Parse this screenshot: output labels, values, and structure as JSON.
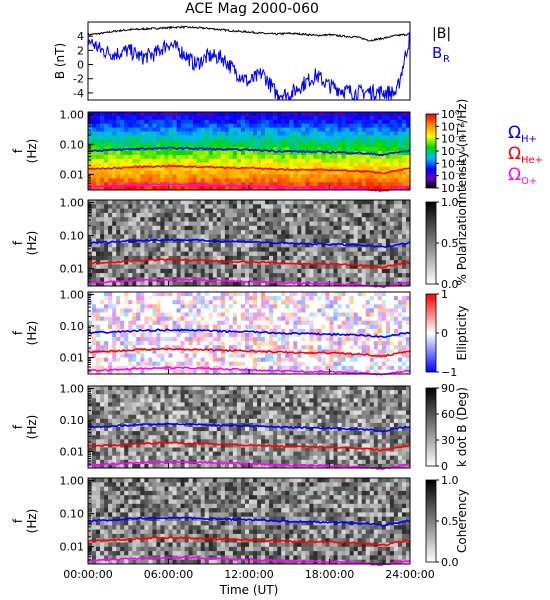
{
  "title": "ACE Mag 2000-060",
  "colors": {
    "B_mag": "#000000",
    "B_R": "#0000ff",
    "H_plus": "#0000ff",
    "He_plus": "#ff0000",
    "O_plus": "#ff00ff"
  },
  "chart_data": [
    {
      "type": "line",
      "panel": "field",
      "ylabel": "B (nT)",
      "ylim": [
        -5,
        6
      ],
      "yticks": [
        "4",
        "2",
        "0",
        "-2",
        "-4"
      ],
      "series": [
        {
          "name": "|B|",
          "x": [
            0,
            1,
            2,
            3,
            4,
            5,
            6,
            7,
            8,
            9,
            10,
            11,
            12,
            13,
            14,
            15,
            16,
            17,
            18,
            19,
            20,
            21,
            22,
            23,
            24
          ],
          "values": [
            4.2,
            4.4,
            4.7,
            4.9,
            5.0,
            5.1,
            5.2,
            5.3,
            5.2,
            5.1,
            4.9,
            4.7,
            4.6,
            4.4,
            4.3,
            4.4,
            4.3,
            4.1,
            4.2,
            4.0,
            3.9,
            3.4,
            3.7,
            4.1,
            4.3
          ]
        },
        {
          "name": "B",
          "subscript": "R",
          "x": [
            0,
            1,
            2,
            3,
            4,
            5,
            6,
            7,
            8,
            9,
            10,
            11,
            12,
            13,
            14,
            15,
            16,
            17,
            18,
            19,
            20,
            21,
            22,
            23,
            24
          ],
          "values": [
            3.5,
            2.0,
            1.5,
            2.0,
            1.0,
            1.5,
            3.0,
            1.8,
            0.0,
            1.2,
            1.0,
            -1.0,
            -2.5,
            -1.2,
            -4.0,
            -4.3,
            -2.8,
            -1.5,
            -3.0,
            -3.6,
            -4.0,
            -3.8,
            -3.9,
            -4.0,
            4.0
          ]
        }
      ]
    },
    {
      "type": "heatmap",
      "panel": "spectra",
      "ylabel": "f (Hz)",
      "yticks": [
        "1.00",
        "0.10",
        "0.01"
      ],
      "colorbar_label": "Intensity (nT²/Hz)",
      "colorbar_ticks": [
        "10⁰",
        "10⁻¹",
        "10⁻²",
        "10⁻³",
        "10⁻⁴",
        "10⁻⁵",
        "10⁻⁶"
      ],
      "legend": [
        {
          "symbol": "Ω",
          "subscript": "H+",
          "color": "#0000ff"
        },
        {
          "symbol": "Ω",
          "subscript": "He+",
          "color": "#ff0000"
        },
        {
          "symbol": "Ω",
          "subscript": "O+",
          "color": "#ff00ff"
        }
      ]
    },
    {
      "type": "heatmap",
      "panel": "polarization",
      "ylabel": "f (Hz)",
      "yticks": [
        "1.00",
        "0.10",
        "0.01"
      ],
      "colorbar_label": "% Polarization",
      "colorbar_ticks": [
        "1.0",
        "0.5",
        "0.0"
      ]
    },
    {
      "type": "heatmap",
      "panel": "ellipticity",
      "ylabel": "f (Hz)",
      "yticks": [
        "1.00",
        "0.10",
        "0.01"
      ],
      "colorbar_label": "Ellipticity",
      "colorbar_ticks": [
        "1",
        "0",
        "−1"
      ]
    },
    {
      "type": "heatmap",
      "panel": "kdotb",
      "ylabel": "f (Hz)",
      "yticks": [
        "1.00",
        "0.10",
        "0.01"
      ],
      "colorbar_label": "k dot B (Deg)",
      "colorbar_ticks": [
        "90",
        "60",
        "30",
        "0"
      ]
    },
    {
      "type": "heatmap",
      "panel": "coherency",
      "ylabel": "f (Hz)",
      "yticks": [
        "1.00",
        "0.10",
        "0.01"
      ],
      "colorbar_label": "Coherency",
      "colorbar_ticks": [
        "1.0",
        "0.5",
        "0.0"
      ]
    }
  ],
  "gyrofrequency_lines": {
    "x_hours": [
      0,
      2,
      4,
      6,
      8,
      10,
      12,
      14,
      16,
      18,
      20,
      22,
      24
    ],
    "H_plus_hz": [
      0.06,
      0.065,
      0.072,
      0.075,
      0.073,
      0.068,
      0.066,
      0.06,
      0.057,
      0.055,
      0.052,
      0.045,
      0.062
    ],
    "He_plus_hz": [
      0.015,
      0.016,
      0.018,
      0.019,
      0.018,
      0.017,
      0.016,
      0.015,
      0.014,
      0.014,
      0.013,
      0.011,
      0.016
    ],
    "O_plus_hz": [
      0.0038,
      0.0041,
      0.0045,
      0.0047,
      0.0046,
      0.0043,
      0.0041,
      0.0038,
      0.0036,
      0.0035,
      0.0033,
      0.0028,
      0.0039
    ]
  },
  "x_axis": {
    "label": "Time (UT)",
    "ticks": [
      "00:00:00",
      "06:00:00",
      "12:00:00",
      "18:00:00",
      "24:00:00"
    ]
  }
}
